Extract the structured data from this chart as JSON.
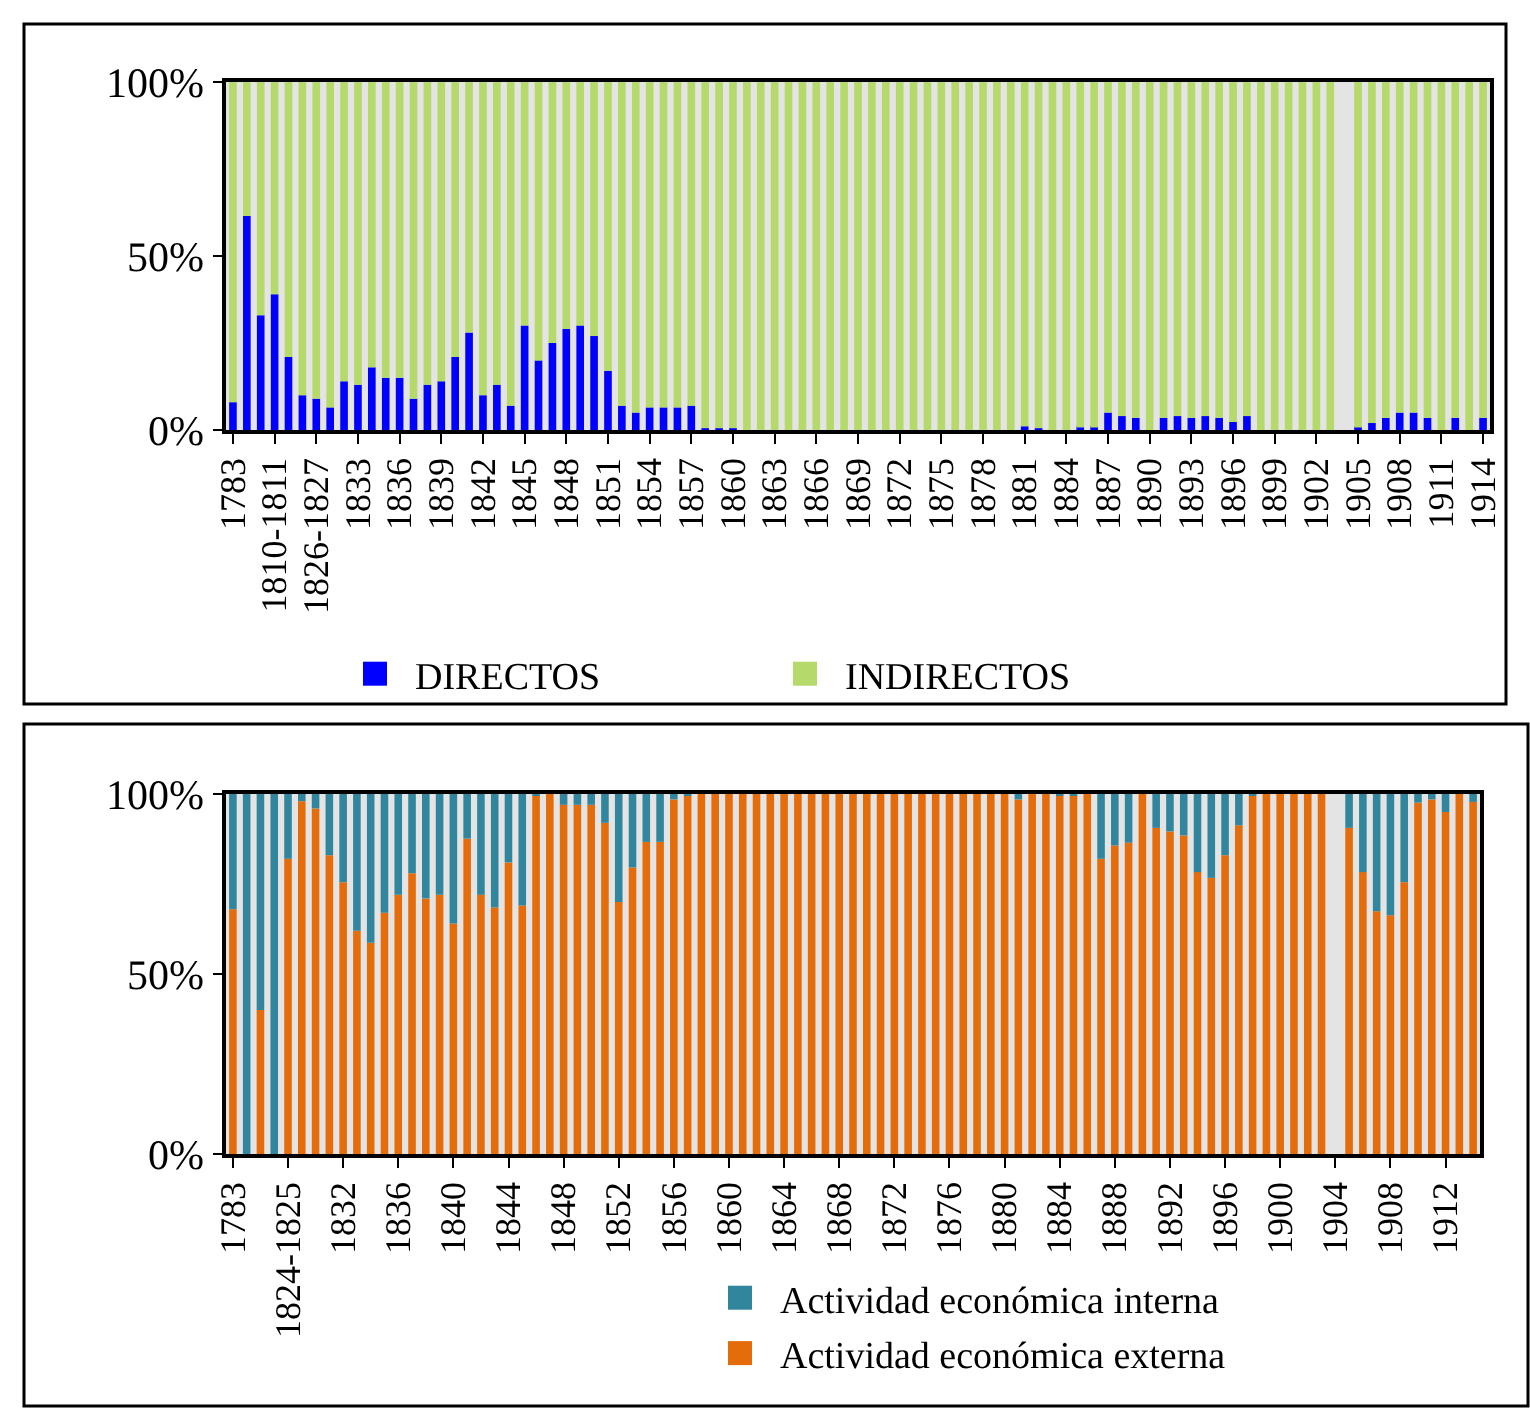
{
  "chart_data": [
    {
      "type": "bar",
      "stacked": true,
      "legend": "bottom",
      "categories": [
        "1783",
        null,
        null,
        "1810-1811",
        null,
        null,
        "1826-1827",
        null,
        null,
        "1833",
        null,
        null,
        "1836",
        null,
        null,
        "1839",
        null,
        null,
        "1842",
        null,
        null,
        "1845",
        null,
        null,
        "1848",
        null,
        null,
        "1851",
        null,
        null,
        "1854",
        null,
        null,
        "1857",
        null,
        null,
        "1860",
        null,
        null,
        "1863",
        null,
        null,
        "1866",
        null,
        null,
        "1869",
        null,
        null,
        "1872",
        null,
        null,
        "1875",
        null,
        null,
        "1878",
        null,
        null,
        "1881",
        null,
        null,
        "1884",
        null,
        null,
        "1887",
        null,
        null,
        "1890",
        null,
        null,
        "1893",
        null,
        null,
        "1896",
        null,
        null,
        "1899",
        null,
        null,
        "1902",
        null,
        null,
        "1905",
        null,
        null,
        "1908",
        null,
        null,
        "1911",
        null,
        null,
        "1914"
      ],
      "ylim": [
        0,
        100
      ],
      "yticks": [
        {
          "value": 0,
          "label": "0%"
        },
        {
          "value": 50,
          "label": "50%"
        },
        {
          "value": 100,
          "label": "100%"
        }
      ],
      "series": [
        {
          "name": "DIRECTOS",
          "color": "#0000ff",
          "values": [
            8,
            61.5,
            33,
            39,
            21,
            10,
            9,
            6.5,
            14,
            13,
            18,
            15,
            15,
            9,
            13,
            14,
            21,
            28,
            10,
            13,
            7,
            30,
            20,
            25,
            29,
            30,
            27,
            17,
            7,
            5,
            6.5,
            6.5,
            6.5,
            7,
            0.5,
            0.5,
            0.5,
            0,
            0,
            0,
            0,
            0,
            0,
            0,
            0,
            0,
            0,
            0,
            0,
            0,
            0,
            0,
            0,
            0,
            0,
            0,
            0,
            1,
            0.5,
            0,
            0,
            0.7,
            0.7,
            5,
            4,
            3.5,
            0,
            3.5,
            4,
            3.5,
            4,
            3.5,
            2.3,
            4,
            0,
            0,
            0,
            0,
            0,
            0,
            null,
            0.7,
            2,
            3.5,
            5,
            5,
            3.5,
            0,
            3.5,
            0,
            3.5
          ]
        },
        {
          "name": "INDIRECTOS",
          "color": "#b5d96a",
          "values": [
            92,
            38.5,
            67,
            61,
            79,
            90,
            91,
            93.5,
            86,
            87,
            82,
            85,
            85,
            91,
            87,
            86,
            79,
            72,
            90,
            87,
            93,
            70,
            80,
            75,
            71,
            70,
            73,
            83,
            93,
            95,
            93.5,
            93.5,
            93.5,
            93,
            99.5,
            99.5,
            99.5,
            100,
            100,
            100,
            100,
            100,
            100,
            100,
            100,
            100,
            100,
            100,
            100,
            100,
            100,
            100,
            100,
            100,
            100,
            100,
            100,
            99,
            99.5,
            100,
            100,
            99.3,
            99.3,
            95,
            96,
            96.5,
            100,
            96.5,
            96,
            96.5,
            96,
            96.5,
            97.7,
            96,
            100,
            100,
            100,
            100,
            100,
            100,
            null,
            99.3,
            98,
            96.5,
            95,
            95,
            96.5,
            100,
            96.5,
            100,
            96.5
          ]
        }
      ]
    },
    {
      "type": "bar",
      "stacked": true,
      "legend": "bottom right",
      "categories": [
        "1783",
        null,
        null,
        null,
        "1824-1825",
        null,
        null,
        null,
        "1832",
        null,
        null,
        null,
        "1836",
        null,
        null,
        null,
        "1840",
        null,
        null,
        null,
        "1844",
        null,
        null,
        null,
        "1848",
        null,
        null,
        null,
        "1852",
        null,
        null,
        null,
        "1856",
        null,
        null,
        null,
        "1860",
        null,
        null,
        null,
        "1864",
        null,
        null,
        null,
        "1868",
        null,
        null,
        null,
        "1872",
        null,
        null,
        null,
        "1876",
        null,
        null,
        null,
        "1880",
        null,
        null,
        null,
        "1884",
        null,
        null,
        null,
        "1888",
        null,
        null,
        null,
        "1892",
        null,
        null,
        null,
        "1896",
        null,
        null,
        null,
        "1900",
        null,
        null,
        null,
        "1904",
        null,
        null,
        null,
        "1908",
        null,
        null,
        null,
        "1912",
        null,
        null
      ],
      "ylim": [
        0,
        100
      ],
      "yticks": [
        {
          "value": 0,
          "label": "0%"
        },
        {
          "value": 50,
          "label": "50%"
        },
        {
          "value": 100,
          "label": "100%"
        }
      ],
      "series": [
        {
          "name": "Actividad económica externa",
          "color": "#e46c0a",
          "values": [
            68,
            0,
            40,
            0,
            82,
            98,
            96,
            83,
            75.5,
            62,
            58.7,
            67,
            72,
            78,
            71,
            72,
            64,
            87.6,
            72,
            68.5,
            81,
            69,
            99.5,
            100,
            97,
            97,
            97,
            92,
            70,
            79.6,
            86.7,
            86.7,
            98.5,
            99.5,
            100,
            100,
            100,
            100,
            100,
            100,
            100,
            100,
            100,
            100,
            100,
            100,
            100,
            100,
            100,
            100,
            100,
            100,
            100,
            100,
            100,
            100,
            100,
            98.5,
            100,
            100,
            99.5,
            99.5,
            100,
            82,
            85.7,
            86.5,
            100,
            90.6,
            89.6,
            88.5,
            78.3,
            76.7,
            83,
            91.3,
            99.5,
            100,
            100,
            100,
            100,
            100,
            null,
            90.6,
            78.3,
            67.4,
            66.3,
            75.5,
            97.6,
            98.5,
            95,
            100,
            97.8
          ]
        },
        {
          "name": "Actividad económica interna",
          "color": "#31859c",
          "values": [
            32,
            100,
            60,
            100,
            18,
            2,
            4,
            17,
            24.5,
            38,
            41.3,
            33,
            28,
            22,
            29,
            28,
            36,
            12.4,
            28,
            31.5,
            19,
            31,
            0.5,
            0,
            3,
            3,
            3,
            8,
            30,
            20.4,
            13.3,
            13.3,
            1.5,
            0.5,
            0,
            0,
            0,
            0,
            0,
            0,
            0,
            0,
            0,
            0,
            0,
            0,
            0,
            0,
            0,
            0,
            0,
            0,
            0,
            0,
            0,
            0,
            0,
            1.5,
            0,
            0,
            0.5,
            0.5,
            0,
            18,
            14.3,
            13.5,
            0,
            9.4,
            10.4,
            11.5,
            21.7,
            23.3,
            17,
            8.7,
            0.5,
            0,
            0,
            0,
            0,
            0,
            null,
            9.4,
            21.7,
            32.6,
            33.7,
            24.5,
            2.4,
            1.5,
            5,
            0,
            2.2
          ]
        }
      ]
    }
  ]
}
